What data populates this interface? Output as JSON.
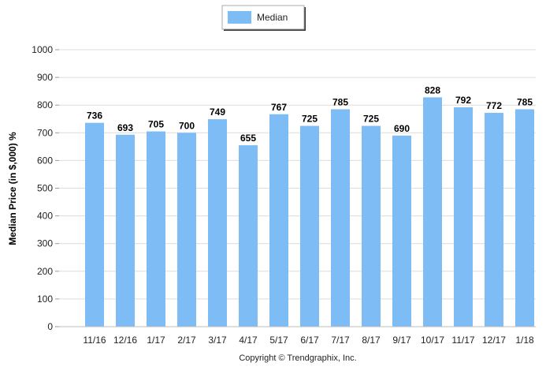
{
  "chart_data": {
    "type": "bar",
    "categories": [
      "11/16",
      "12/16",
      "1/17",
      "2/17",
      "3/17",
      "4/17",
      "5/17",
      "6/17",
      "7/17",
      "8/17",
      "9/17",
      "10/17",
      "11/17",
      "12/17",
      "1/18"
    ],
    "series": [
      {
        "name": "Median",
        "values": [
          736,
          693,
          705,
          700,
          749,
          655,
          767,
          725,
          785,
          725,
          690,
          828,
          792,
          772,
          785
        ],
        "color": "#7dbcf4"
      }
    ],
    "data_labels": [
      "736",
      "693",
      "705",
      "700",
      "749",
      "655",
      "767",
      "725",
      "785",
      "725",
      "690",
      "828",
      "792",
      "772",
      "785"
    ],
    "ylabel": "Median Price (in $,000) %",
    "xlabel": "",
    "ylim": [
      0,
      1000
    ],
    "yticks": [
      0,
      100,
      200,
      300,
      400,
      500,
      600,
      700,
      800,
      900,
      1000
    ],
    "ytick_labels": [
      "0",
      "100",
      "200",
      "300",
      "400",
      "500",
      "600",
      "700",
      "800",
      "900",
      "1000"
    ],
    "grid": true,
    "legend_position": "top-center",
    "legend_label": "Median",
    "footer": "Copyright © Trendgraphix, Inc."
  }
}
